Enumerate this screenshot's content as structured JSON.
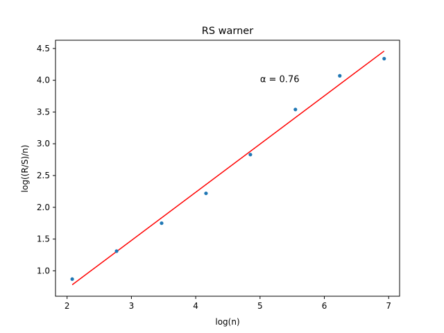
{
  "chart_data": {
    "type": "scatter",
    "title": "RS warner",
    "xlabel": "log(n)",
    "ylabel": "log((R/S)/n)",
    "xlim": [
      1.82,
      7.17
    ],
    "ylim": [
      0.6,
      4.63
    ],
    "xticks": [
      2,
      3,
      4,
      5,
      6,
      7
    ],
    "yticks": [
      1.0,
      1.5,
      2.0,
      2.5,
      3.0,
      3.5,
      4.0,
      4.5
    ],
    "xtick_labels": [
      "2",
      "3",
      "4",
      "5",
      "6",
      "7"
    ],
    "ytick_labels": [
      "1.0",
      "1.5",
      "2.0",
      "2.5",
      "3.0",
      "3.5",
      "4.0",
      "4.5"
    ],
    "grid": false,
    "series": [
      {
        "kind": "scatter",
        "color": "#1f77b4",
        "points": [
          {
            "x": 2.08,
            "y": 0.87
          },
          {
            "x": 2.77,
            "y": 1.31
          },
          {
            "x": 3.47,
            "y": 1.75
          },
          {
            "x": 4.16,
            "y": 2.22
          },
          {
            "x": 4.85,
            "y": 2.83
          },
          {
            "x": 5.55,
            "y": 3.54
          },
          {
            "x": 6.24,
            "y": 4.07
          },
          {
            "x": 6.93,
            "y": 4.34
          }
        ]
      },
      {
        "kind": "line",
        "color": "#ff0000",
        "points": [
          {
            "x": 2.08,
            "y": 0.78
          },
          {
            "x": 6.93,
            "y": 4.46
          }
        ]
      }
    ],
    "annotations": [
      {
        "text": "α = 0.76",
        "x": 5.0,
        "y": 4.0
      }
    ]
  }
}
